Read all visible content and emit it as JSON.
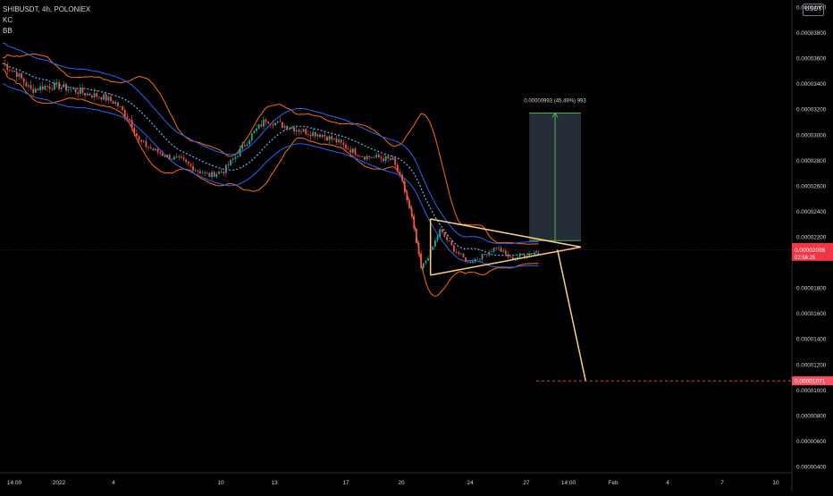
{
  "header": {
    "symbol_line": "SHIBUSDT, 4h, POLONIEX",
    "indicator_1": "KC",
    "indicator_2": "BB"
  },
  "currency_badge": "USDT",
  "chart_data": {
    "type": "candlestick",
    "symbol": "SHIBUSDT",
    "timeframe": "4h",
    "exchange": "POLONIEX",
    "indicators": [
      "KC",
      "BB"
    ],
    "y_axis": {
      "ticks": [
        "0.00004000",
        "0.00003800",
        "0.00003600",
        "0.00003400",
        "0.00003200",
        "0.00003000",
        "0.00002800",
        "0.00002600",
        "0.00002400",
        "0.00002200",
        "0.00001800",
        "0.00001600",
        "0.00001400",
        "0.00001200",
        "0.00001000",
        "0.00000800",
        "0.00000600",
        "0.00000400"
      ],
      "ylim": [
        4e-06,
        4e-05
      ]
    },
    "x_axis": {
      "ticks": [
        "14:00",
        "2022",
        "4",
        "10",
        "13",
        "17",
        "20",
        "24",
        "27",
        "14:00",
        "Feb",
        "4",
        "7",
        "10"
      ]
    },
    "current_price": {
      "value": "0.00002096",
      "countdown": "02:56:25",
      "color": "#f23645"
    },
    "target_price": {
      "value": "0.00001071",
      "color": "#f7525f"
    },
    "measure_label": "0.00000993 (45.49%) 993",
    "colors": {
      "up": "#26a69a",
      "down": "#ef5350",
      "kc_band": "#2962ff",
      "kc_mid": "#64b5f6",
      "bb_band": "#ff6d00",
      "triangle": "#ffcc80",
      "measure_fill": "#2a3542",
      "measure_line": "#4caf50"
    },
    "price_path": [
      {
        "t": 0,
        "p": 3.56e-05
      },
      {
        "t": 6,
        "p": 3.48e-05
      },
      {
        "t": 12,
        "p": 3.35e-05
      },
      {
        "t": 18,
        "p": 3.38e-05
      },
      {
        "t": 24,
        "p": 3.38e-05
      },
      {
        "t": 30,
        "p": 3.35e-05
      },
      {
        "t": 36,
        "p": 3.32e-05
      },
      {
        "t": 42,
        "p": 3.3e-05
      },
      {
        "t": 48,
        "p": 3.25e-05
      },
      {
        "t": 54,
        "p": 3.12e-05
      },
      {
        "t": 58,
        "p": 2.95e-05
      },
      {
        "t": 64,
        "p": 2.88e-05
      },
      {
        "t": 70,
        "p": 2.83e-05
      },
      {
        "t": 76,
        "p": 2.8e-05
      },
      {
        "t": 82,
        "p": 2.73e-05
      },
      {
        "t": 88,
        "p": 2.68e-05
      },
      {
        "t": 94,
        "p": 2.72e-05
      },
      {
        "t": 100,
        "p": 2.85e-05
      },
      {
        "t": 106,
        "p": 3e-05
      },
      {
        "t": 112,
        "p": 3.12e-05
      },
      {
        "t": 118,
        "p": 3.08e-05
      },
      {
        "t": 124,
        "p": 3.05e-05
      },
      {
        "t": 130,
        "p": 3.02e-05
      },
      {
        "t": 136,
        "p": 3e-05
      },
      {
        "t": 142,
        "p": 2.95e-05
      },
      {
        "t": 148,
        "p": 2.88e-05
      },
      {
        "t": 154,
        "p": 2.83e-05
      },
      {
        "t": 160,
        "p": 2.82e-05
      },
      {
        "t": 166,
        "p": 2.8e-05
      },
      {
        "t": 170,
        "p": 2.62e-05
      },
      {
        "t": 174,
        "p": 2.35e-05
      },
      {
        "t": 178,
        "p": 1.95e-05
      },
      {
        "t": 182,
        "p": 2.08e-05
      },
      {
        "t": 186,
        "p": 2.25e-05
      },
      {
        "t": 192,
        "p": 2.1e-05
      },
      {
        "t": 198,
        "p": 2e-05
      },
      {
        "t": 204,
        "p": 2.05e-05
      },
      {
        "t": 210,
        "p": 2.12e-05
      },
      {
        "t": 216,
        "p": 2.03e-05
      },
      {
        "t": 222,
        "p": 2.06e-05
      },
      {
        "t": 228,
        "p": 2.09e-05
      }
    ],
    "triangle": {
      "upper": [
        {
          "t": 182,
          "p": 2.34e-05
        },
        {
          "t": 246,
          "p": 2.12e-05
        }
      ],
      "lower": [
        {
          "t": 182,
          "p": 1.9e-05
        },
        {
          "t": 246,
          "p": 2.12e-05
        }
      ],
      "projection": [
        {
          "t": 236,
          "p": 2.1e-05
        },
        {
          "t": 248,
          "p": 1.071e-05
        }
      ]
    },
    "measure_box": {
      "t_start": 224,
      "t_end": 246,
      "p_low": 2.17e-05,
      "p_high": 3.17e-05
    }
  }
}
